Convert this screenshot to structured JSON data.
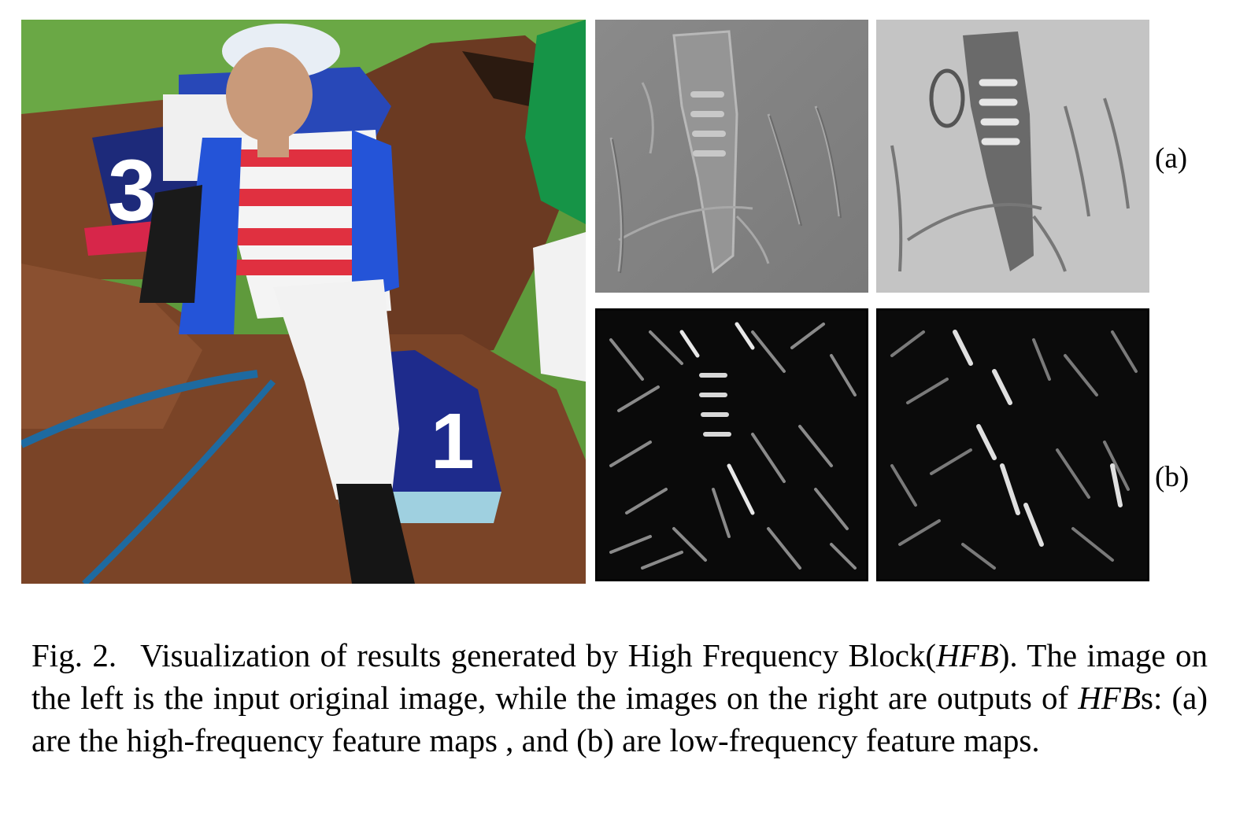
{
  "figure": {
    "panel_labels": {
      "a": "(a)",
      "b": "(b)"
    },
    "photo_alt": "jockeys on horses, number 3 and number 1 saddle cloths",
    "saddle_numbers": [
      "3",
      "1"
    ]
  },
  "caption": {
    "fig_number": "Fig. 2.",
    "part1": "Visualization of results generated by High Frequency Block(",
    "hfb": "HFB",
    "part2": "). The image on the left is the input original image, while the images on the right are outputs of ",
    "hfb_plural": "HFB",
    "part3": "s: (a) are the high-frequency feature maps , and (b) are low-frequency feature maps."
  }
}
